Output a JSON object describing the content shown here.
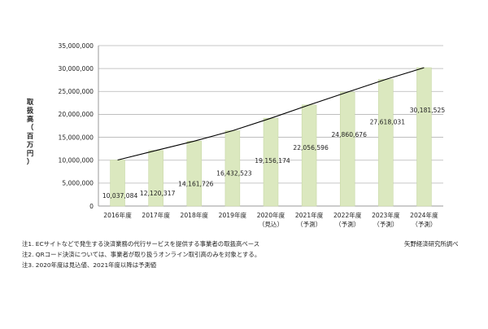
{
  "chart_data": {
    "type": "bar",
    "ylabel": "取扱高（百万円）",
    "ylabel_chars": [
      "取",
      "扱",
      "高",
      "（",
      "百",
      "万",
      "円",
      "）"
    ],
    "categories": [
      [
        "2016年度"
      ],
      [
        "2017年度"
      ],
      [
        "2018年度"
      ],
      [
        "2019年度"
      ],
      [
        "2020年度",
        "（見込）"
      ],
      [
        "2021年度",
        "（予測）"
      ],
      [
        "2022年度",
        "（予測）"
      ],
      [
        "2023年度",
        "（予測）"
      ],
      [
        "2024年度",
        "（予測）"
      ]
    ],
    "values": [
      10037084,
      12120317,
      14161726,
      16432523,
      19156174,
      22056596,
      24860676,
      27618031,
      30181525
    ],
    "value_labels": [
      "10,037,084",
      "12,120,317",
      "14,161,726",
      "16,432,523",
      "19,156,174",
      "22,056,596",
      "24,860,676",
      "27,618,031",
      "30,181,525"
    ],
    "yticks": [
      0,
      5000000,
      10000000,
      15000000,
      20000000,
      25000000,
      30000000,
      35000000
    ],
    "ytick_labels": [
      "0",
      "5,000,000",
      "10,000,000",
      "15,000,000",
      "20,000,000",
      "25,000,000",
      "30,000,000",
      "35,000,000"
    ],
    "ylim": [
      0,
      35000000
    ],
    "grid": true,
    "bar_color": "#dbe8bf",
    "bar_edge_color": "#c8d8a6",
    "trend_line": true,
    "trend_line_color": "#000000",
    "grid_color": "#b5b5b5",
    "frame_color": "#9a9a9a"
  },
  "notes": [
    "注1. ECサイトなどで発生する決済業務の代行サービスを提供する事業者の取扱高ベース",
    "注2. QRコード決済については、事業者が取り扱うオンライン取引高のみを対象とする。",
    "注3. 2020年度は見込値、2021年度以降は予測値"
  ],
  "source": "矢野経済研究所調べ"
}
